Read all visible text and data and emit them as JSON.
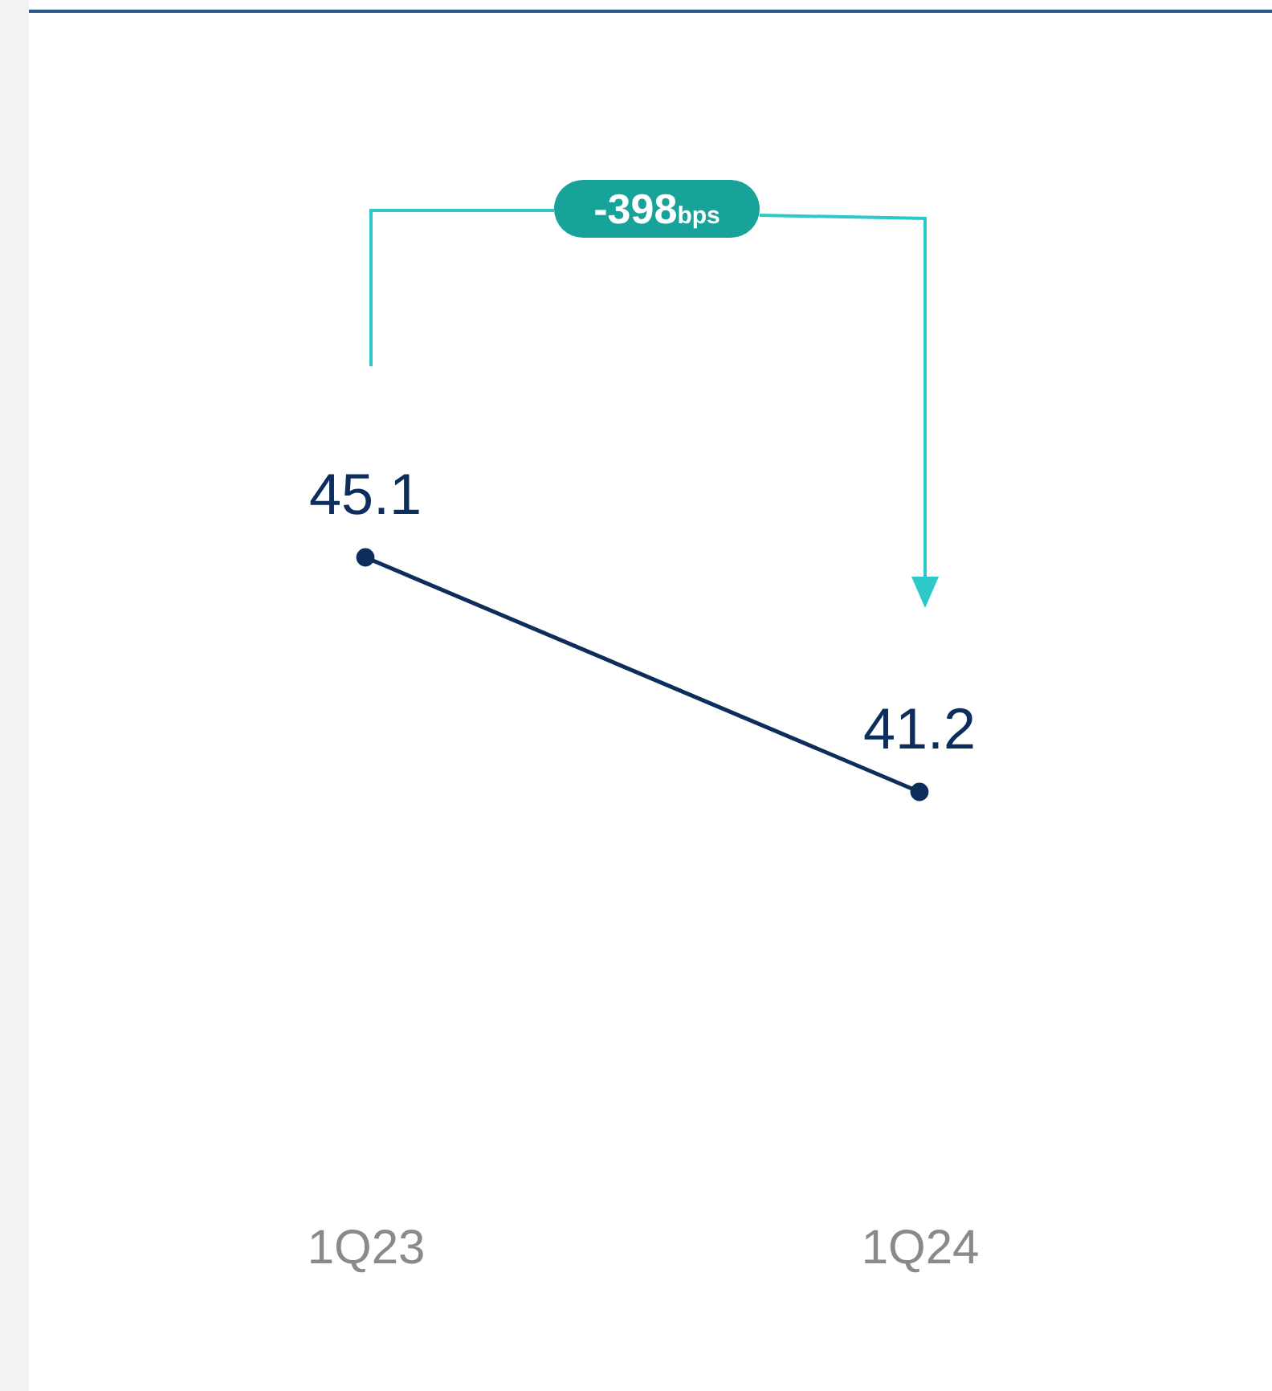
{
  "chart_data": {
    "type": "line",
    "categories": [
      "1Q23",
      "1Q24"
    ],
    "series": [
      {
        "color": "#0d2d5c",
        "values": [
          45.1,
          41.2
        ]
      }
    ],
    "tick_labels": "x",
    "data_labels": true,
    "marker": "circle",
    "line_style": "solid",
    "grid": false,
    "legend": false,
    "annotations": [
      "-398$_{bps}$"
    ]
  }
}
